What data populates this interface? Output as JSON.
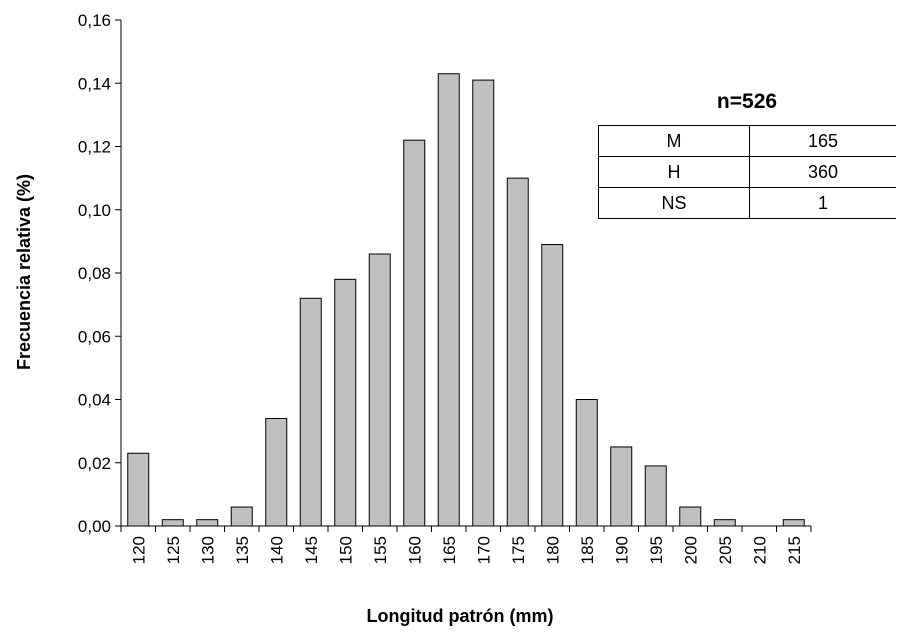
{
  "chart_data": {
    "type": "bar",
    "categories": [
      "120",
      "125",
      "130",
      "135",
      "140",
      "145",
      "150",
      "155",
      "160",
      "165",
      "170",
      "175",
      "180",
      "185",
      "190",
      "195",
      "200",
      "205",
      "210",
      "215"
    ],
    "values": [
      0.023,
      0.002,
      0.002,
      0.006,
      0.034,
      0.072,
      0.078,
      0.086,
      0.122,
      0.143,
      0.141,
      0.11,
      0.089,
      0.04,
      0.025,
      0.019,
      0.006,
      0.002,
      0.0,
      0.002
    ],
    "xlabel": "Longitud patrón (mm)",
    "ylabel": "Frecuencia relativa (%)",
    "ylim": [
      0,
      0.16
    ],
    "yticks": [
      {
        "value": 0.0,
        "label": "0,00"
      },
      {
        "value": 0.02,
        "label": "0,02"
      },
      {
        "value": 0.04,
        "label": "0,04"
      },
      {
        "value": 0.06,
        "label": "0,06"
      },
      {
        "value": 0.08,
        "label": "0,08"
      },
      {
        "value": 0.1,
        "label": "0,10"
      },
      {
        "value": 0.12,
        "label": "0,12"
      },
      {
        "value": 0.14,
        "label": "0,14"
      },
      {
        "value": 0.16,
        "label": "0,16"
      }
    ],
    "bar_color": "#c0c0c0",
    "grid": false,
    "annotation": {
      "title": "n=526",
      "rows": [
        {
          "key": "M",
          "value": "165"
        },
        {
          "key": "H",
          "value": "360"
        },
        {
          "key": "NS",
          "value": "1"
        }
      ]
    }
  }
}
